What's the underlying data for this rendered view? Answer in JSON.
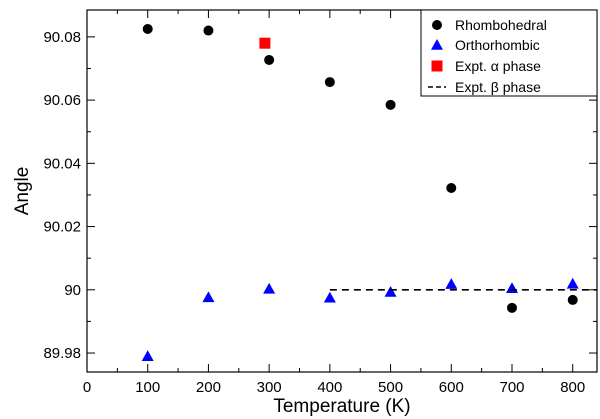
{
  "chart_data": {
    "type": "scatter",
    "xlabel": "Temperature (K)",
    "ylabel": "Angle",
    "xlim": [
      0,
      840
    ],
    "ylim": [
      89.974,
      90.0885
    ],
    "xticks": [
      0,
      100,
      200,
      300,
      400,
      500,
      600,
      700,
      800
    ],
    "yticks": [
      89.98,
      90,
      90.02,
      90.04,
      90.06,
      90.08
    ],
    "ytick_labels": [
      "89.98",
      "90",
      "90.02",
      "90.04",
      "90.06",
      "90.08"
    ],
    "legend_position": "top-right",
    "series": [
      {
        "name": "Rhombohedral",
        "marker": "circle",
        "color": "#000000",
        "points": [
          {
            "x": 100,
            "y": 90.0825
          },
          {
            "x": 200,
            "y": 90.082
          },
          {
            "x": 300,
            "y": 90.0727
          },
          {
            "x": 400,
            "y": 90.0657
          },
          {
            "x": 500,
            "y": 90.0585
          },
          {
            "x": 600,
            "y": 90.0322
          },
          {
            "x": 700,
            "y": 89.9943
          },
          {
            "x": 800,
            "y": 89.9968
          }
        ]
      },
      {
        "name": "Orthorhombic",
        "marker": "triangle",
        "color": "#0000ff",
        "points": [
          {
            "x": 100,
            "y": 89.979
          },
          {
            "x": 200,
            "y": 89.9976
          },
          {
            "x": 300,
            "y": 90.0003
          },
          {
            "x": 400,
            "y": 89.9975
          },
          {
            "x": 500,
            "y": 89.9993
          },
          {
            "x": 600,
            "y": 90.0018
          },
          {
            "x": 700,
            "y": 90.0005
          },
          {
            "x": 800,
            "y": 90.0019
          }
        ]
      },
      {
        "name": "Expt.  α phase",
        "marker": "square",
        "color": "#ff0000",
        "points": [
          {
            "x": 293,
            "y": 90.078
          }
        ]
      },
      {
        "name": "Expt. β phase",
        "marker": "dashed-line",
        "color": "#000000",
        "points": [
          {
            "x": 400,
            "y": 90.0
          },
          {
            "x": 840,
            "y": 90.0
          }
        ]
      }
    ]
  }
}
